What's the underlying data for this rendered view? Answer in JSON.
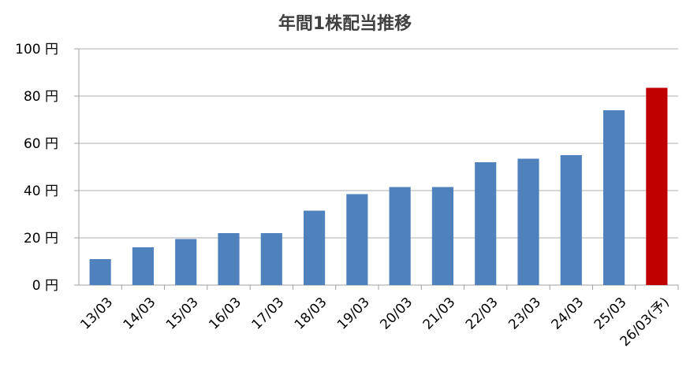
{
  "chart_data": {
    "type": "bar",
    "title": "年間1株配当推移",
    "categories": [
      "13/03",
      "14/03",
      "15/03",
      "16/03",
      "17/03",
      "18/03",
      "19/03",
      "20/03",
      "21/03",
      "22/03",
      "23/03",
      "24/03",
      "25/03",
      "26/03(予)"
    ],
    "values": [
      11,
      16,
      19.5,
      22,
      22,
      31.5,
      38.5,
      41.5,
      41.5,
      52,
      53.5,
      55,
      74,
      83.5
    ],
    "y_ticks": [
      "0 円",
      "20 円",
      "40 円",
      "60 円",
      "80 円",
      "100 円"
    ],
    "ylim": [
      0,
      100
    ],
    "grid": true,
    "bar_color": "#4f81bd",
    "forecast_bar_color": "#c00000",
    "forecast_index": 13
  }
}
